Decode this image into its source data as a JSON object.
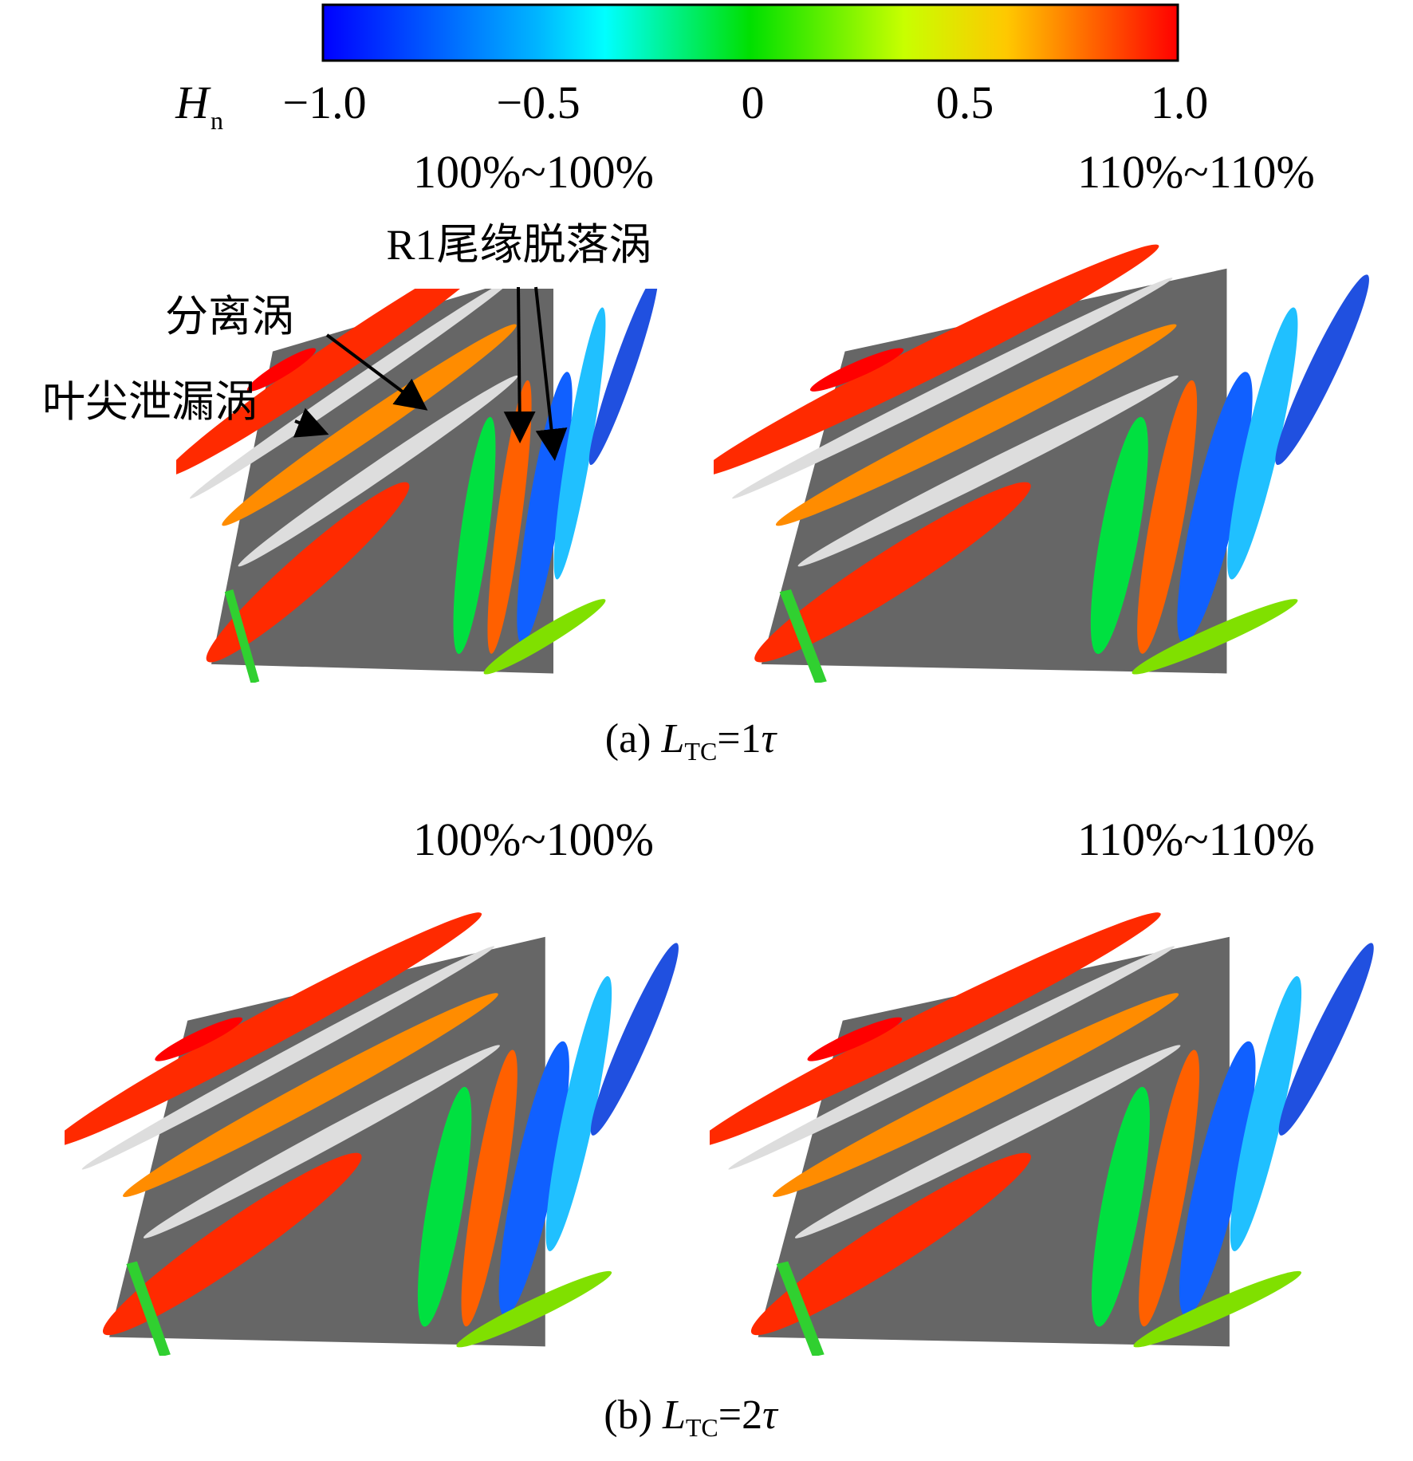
{
  "colorbar": {
    "symbol": "H",
    "subscript": "n",
    "ticks": [
      "−1.0",
      "−0.5",
      "0",
      "0.5",
      "1.0"
    ]
  },
  "panels": [
    {
      "title": "100%~100%"
    },
    {
      "title": "110%~110%"
    },
    {
      "title": "100%~100%"
    },
    {
      "title": "110%~110%"
    }
  ],
  "annotations": [
    "R1尾缘脱落涡",
    "分离涡",
    "叶尖泄漏涡"
  ],
  "captions": [
    {
      "prefix": "(a)",
      "symbol": "L",
      "subscript": "TC",
      "equals": "=1",
      "unit": "τ"
    },
    {
      "prefix": "(b)",
      "symbol": "L",
      "subscript": "TC",
      "equals": "=2",
      "unit": "τ"
    }
  ]
}
